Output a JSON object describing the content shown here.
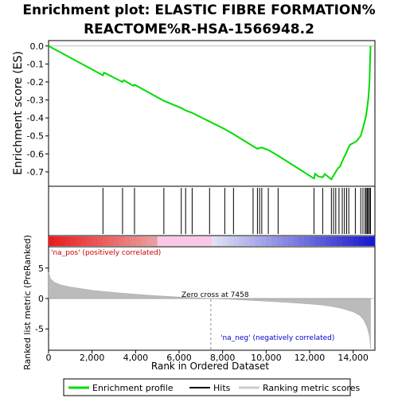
{
  "chart_data": {
    "type": "line",
    "title_line1": "Enrichment plot: ELASTIC FIBRE FORMATION%",
    "title_line2": "REACTOME%R-HSA-1566948.2",
    "es_panel": {
      "ylabel": "Enrichment score (ES)",
      "ylim": [
        -0.78,
        0.03
      ],
      "yticks": [
        0.0,
        -0.1,
        -0.2,
        -0.3,
        -0.4,
        -0.5,
        -0.6,
        -0.7
      ],
      "ytick_labels": [
        "0.0",
        "-0.1",
        "-0.2",
        "-0.3",
        "-0.4",
        "-0.5",
        "-0.6",
        "-0.7"
      ],
      "series_name": "Enrichment profile",
      "line_color": "#00dd00",
      "x": [
        0,
        2500,
        2550,
        3400,
        3450,
        3900,
        3950,
        5300,
        6100,
        6300,
        6600,
        7400,
        8100,
        8500,
        9400,
        9600,
        9700,
        9800,
        10100,
        10550,
        12200,
        12250,
        12400,
        12600,
        12700,
        13000,
        13100,
        13200,
        13300,
        13400,
        13500,
        13600,
        13700,
        13750,
        13850,
        14150,
        14350,
        14450,
        14550,
        14600,
        14650,
        14700,
        14750,
        14800
      ],
      "y": [
        0.0,
        -0.163,
        -0.148,
        -0.2,
        -0.19,
        -0.222,
        -0.215,
        -0.305,
        -0.345,
        -0.358,
        -0.372,
        -0.42,
        -0.462,
        -0.49,
        -0.557,
        -0.572,
        -0.567,
        -0.565,
        -0.578,
        -0.61,
        -0.737,
        -0.71,
        -0.725,
        -0.73,
        -0.712,
        -0.742,
        -0.72,
        -0.7,
        -0.68,
        -0.67,
        -0.64,
        -0.615,
        -0.59,
        -0.575,
        -0.55,
        -0.53,
        -0.5,
        -0.455,
        -0.41,
        -0.38,
        -0.34,
        -0.29,
        -0.2,
        0.0
      ]
    },
    "hits": [
      2500,
      3400,
      3950,
      5300,
      6100,
      6300,
      6600,
      7400,
      8100,
      8500,
      9400,
      9600,
      9700,
      9800,
      10100,
      10550,
      12200,
      12600,
      13000,
      13100,
      13200,
      13350,
      13500,
      13600,
      13700,
      13800,
      14100,
      14350,
      14450,
      14550,
      14600,
      14650,
      14700,
      14750,
      14800
    ],
    "rank_panel": {
      "ylabel_line1": "Ranked list metric (PreRanked)",
      "ylim": [
        -8.5,
        8.5
      ],
      "yticks": [
        5,
        0,
        -5
      ],
      "ytick_labels": [
        "5",
        "0",
        "-5"
      ],
      "series_name": "Ranking metric scores",
      "profile_x": [
        0,
        100,
        300,
        600,
        1000,
        2000,
        3000,
        4000,
        5000,
        6000,
        7000,
        7458,
        8000,
        9000,
        10000,
        11000,
        12000,
        12500,
        13000,
        13500,
        14000,
        14300,
        14500,
        14650,
        14750,
        14800
      ],
      "profile_y": [
        4.3,
        3.2,
        2.6,
        2.2,
        1.9,
        1.35,
        1.0,
        0.7,
        0.45,
        0.25,
        0.08,
        0.0,
        -0.08,
        -0.25,
        -0.45,
        -0.65,
        -0.9,
        -1.05,
        -1.3,
        -1.65,
        -2.2,
        -2.8,
        -3.6,
        -4.8,
        -6.2,
        -8.2
      ],
      "pos_label": "'na_pos' (positively correlated)",
      "neg_label": "'na_neg' (negatively correlated)",
      "zero_cross_label": "Zero cross at 7458",
      "zero_cross": 7458
    },
    "xlabel": "Rank in Ordered Dataset",
    "xlim": [
      0,
      15000
    ],
    "xticks": [
      0,
      2000,
      4000,
      6000,
      8000,
      10000,
      12000,
      14000
    ],
    "xtick_labels": [
      "0",
      "2,000",
      "4,000",
      "6,000",
      "8,000",
      "10,000",
      "12,000",
      "14,000"
    ],
    "legend": [
      "Enrichment profile",
      "Hits",
      "Ranking metric scores"
    ]
  }
}
